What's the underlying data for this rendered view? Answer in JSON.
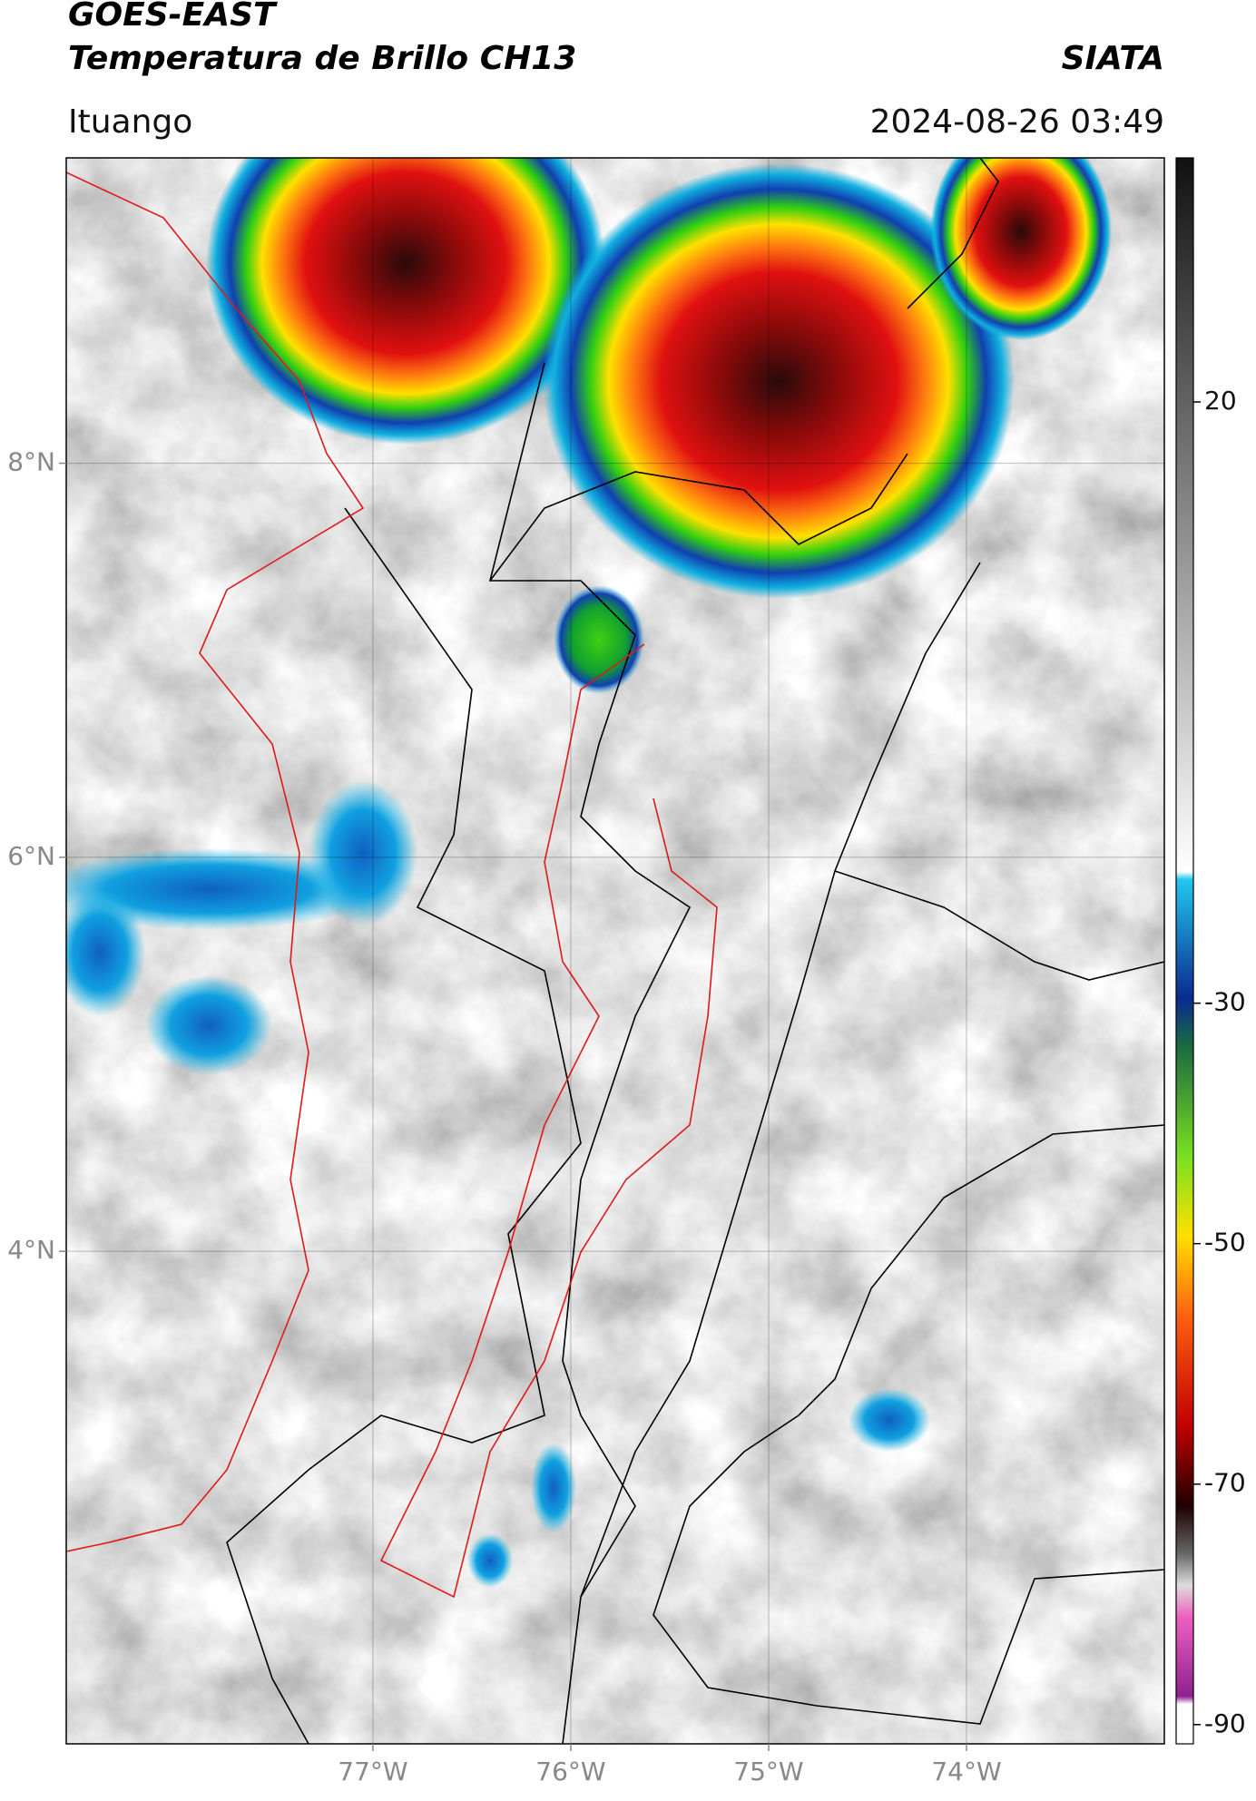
{
  "header": {
    "title": "GOES-EAST",
    "subtitle": "Temperatura de Brillo CH13",
    "source": "SIATA",
    "location": "Ituango",
    "datetime": "2024-08-26 03:49"
  },
  "map": {
    "xlim": [
      -78.55,
      -73.0
    ],
    "ylim": [
      1.5,
      9.55
    ],
    "xticks": [
      {
        "value": -77,
        "label": "77°W"
      },
      {
        "value": -76,
        "label": "76°W"
      },
      {
        "value": -75,
        "label": "75°W"
      },
      {
        "value": -74,
        "label": "74°W"
      }
    ],
    "yticks": [
      {
        "value": 4,
        "label": "4°N"
      },
      {
        "value": 6,
        "label": "6°N"
      },
      {
        "value": 8,
        "label": "8°N"
      }
    ],
    "grid": true
  },
  "colorbar": {
    "lim": [
      -91.6,
      40.3
    ],
    "ticks": [
      20,
      -30,
      -50,
      -70,
      -90
    ]
  }
}
